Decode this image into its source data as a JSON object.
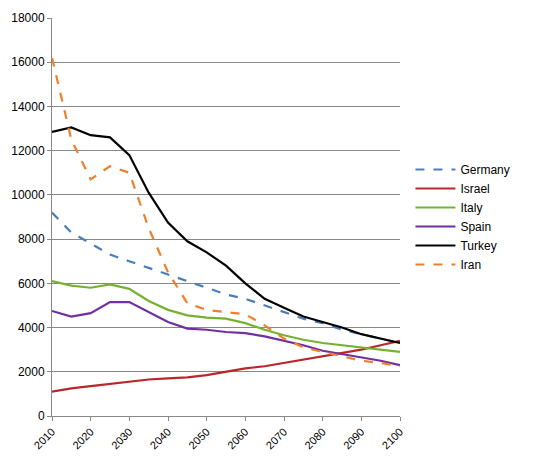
{
  "chart_data": {
    "type": "line",
    "x": [
      2010,
      2015,
      2020,
      2025,
      2030,
      2035,
      2040,
      2045,
      2050,
      2055,
      2060,
      2065,
      2070,
      2075,
      2080,
      2085,
      2090,
      2095,
      2100
    ],
    "series": [
      {
        "name": "Germany",
        "color": "#4a7ebb",
        "line_style": "dashed",
        "values": [
          9200,
          8300,
          7800,
          7300,
          7000,
          6700,
          6400,
          6100,
          5800,
          5500,
          5300,
          5000,
          4700,
          4400,
          4200,
          3900,
          3700,
          3500,
          3300
        ]
      },
      {
        "name": "Israel",
        "color": "#b8282a",
        "line_style": "solid",
        "values": [
          1100,
          1250,
          1350,
          1450,
          1550,
          1650,
          1700,
          1750,
          1850,
          2000,
          2150,
          2250,
          2400,
          2550,
          2700,
          2850,
          3000,
          3200,
          3400
        ]
      },
      {
        "name": "Italy",
        "color": "#77b132",
        "line_style": "solid",
        "values": [
          6100,
          5900,
          5800,
          5950,
          5750,
          5200,
          4800,
          4550,
          4450,
          4400,
          4200,
          3900,
          3650,
          3450,
          3300,
          3200,
          3100,
          3000,
          2900
        ]
      },
      {
        "name": "Spain",
        "color": "#7030a0",
        "line_style": "solid",
        "values": [
          4750,
          4500,
          4650,
          5150,
          5150,
          4700,
          4250,
          3950,
          3900,
          3800,
          3750,
          3600,
          3400,
          3200,
          2950,
          2800,
          2650,
          2500,
          2300
        ]
      },
      {
        "name": "Turkey",
        "color": "#000000",
        "line_style": "solid",
        "values": [
          12850,
          13050,
          12700,
          12600,
          11800,
          10100,
          8750,
          7900,
          7400,
          6800,
          6000,
          5300,
          4900,
          4500,
          4250,
          4000,
          3700,
          3500,
          3300
        ]
      },
      {
        "name": "Iran",
        "color": "#f07f2b",
        "line_style": "dashed",
        "values": [
          16200,
          12500,
          10700,
          11300,
          11000,
          8500,
          6500,
          5100,
          4800,
          4700,
          4600,
          4100,
          3500,
          3100,
          2900,
          2700,
          2500,
          2400,
          2250
        ]
      }
    ],
    "xlim": [
      2010,
      2100
    ],
    "xticks": [
      2010,
      2020,
      2030,
      2040,
      2050,
      2060,
      2070,
      2080,
      2090,
      2100
    ],
    "ylim": [
      0,
      18000
    ],
    "yticks": [
      0,
      2000,
      4000,
      6000,
      8000,
      10000,
      12000,
      14000,
      16000,
      18000
    ],
    "grid": true,
    "legend": "right"
  }
}
